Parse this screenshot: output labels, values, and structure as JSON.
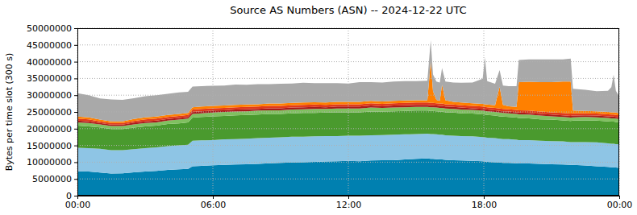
{
  "chart_data": {
    "type": "area",
    "title": "Source AS Numbers (ASN) -- 2024-12-22 UTC",
    "y_label": "Bytes per time slot (300 s)",
    "stacked": true,
    "grid": true,
    "x": [
      0,
      0.5,
      1,
      1.5,
      2,
      2.5,
      3,
      3.5,
      4,
      4.5,
      4.9,
      5.1,
      5.5,
      6,
      6.5,
      7,
      7.5,
      8,
      8.5,
      9,
      9.5,
      10,
      10.5,
      11,
      11.5,
      12,
      12.5,
      13,
      13.5,
      14,
      14.5,
      15,
      15.5,
      15.65,
      15.75,
      15.9,
      16.05,
      16.15,
      16.3,
      16.65,
      17,
      17.5,
      17.95,
      18.05,
      18.15,
      18.5,
      18.7,
      18.85,
      19.1,
      19.45,
      19.55,
      20,
      20.5,
      21,
      21.5,
      21.85,
      21.95,
      22.5,
      23,
      23.5,
      23.65,
      23.75,
      23.85,
      24
    ],
    "xlim": [
      0,
      24
    ],
    "xticks": [
      {
        "value": 0,
        "label": "00:00"
      },
      {
        "value": 6,
        "label": "06:00"
      },
      {
        "value": 12,
        "label": "12:00"
      },
      {
        "value": 18,
        "label": "18:00"
      },
      {
        "value": 24,
        "label": "00:00"
      }
    ],
    "ylim": [
      0,
      50000000
    ],
    "yticks": [
      0,
      5000000,
      10000000,
      15000000,
      20000000,
      25000000,
      30000000,
      35000000,
      40000000,
      45000000,
      50000000
    ],
    "series": [
      {
        "color": "#0080b0",
        "values": [
          7300000,
          7200000,
          6900000,
          6600000,
          6700000,
          7000000,
          7200000,
          7400000,
          7700000,
          7900000,
          8000000,
          8800000,
          8900000,
          9100000,
          9200000,
          9300000,
          9400000,
          9500000,
          9700000,
          9800000,
          9900000,
          10000000,
          10100000,
          10200000,
          10300000,
          10400000,
          10300000,
          10500000,
          10600000,
          10600000,
          10800000,
          11000000,
          11100000,
          11000000,
          11000000,
          10900000,
          10800000,
          10800000,
          10700000,
          10600000,
          10500000,
          10400000,
          10300000,
          10200000,
          10100000,
          10000000,
          9900000,
          9800000,
          9800000,
          9700000,
          9600000,
          9600000,
          9500000,
          9400000,
          9300000,
          9200000,
          9200000,
          9000000,
          8800000,
          8600000,
          8500000,
          8500000,
          8400000,
          8300000
        ]
      },
      {
        "color": "#8ec5e5",
        "values": [
          7000000,
          7000000,
          7100000,
          7000000,
          6900000,
          6900000,
          7000000,
          7000000,
          7100000,
          7100000,
          7200000,
          7600000,
          7600000,
          7500000,
          7600000,
          7600000,
          7600000,
          7700000,
          7600000,
          7600000,
          7700000,
          7600000,
          7600000,
          7600000,
          7500000,
          7500000,
          7600000,
          7500000,
          7500000,
          7600000,
          7500000,
          7400000,
          7400000,
          7400000,
          7400000,
          7400000,
          7400000,
          7400000,
          7300000,
          7300000,
          7300000,
          7300000,
          7200000,
          7200000,
          7200000,
          7200000,
          7100000,
          7100000,
          7100000,
          7000000,
          7000000,
          7000000,
          6900000,
          6900000,
          6900000,
          6800000,
          6800000,
          7000000,
          7100000,
          7000000,
          7000000,
          7000000,
          7000000,
          7000000
        ]
      },
      {
        "color": "#4a9a2e",
        "values": [
          6600000,
          6500000,
          6400000,
          6300000,
          6300000,
          6400000,
          6500000,
          6500000,
          6600000,
          6600000,
          6700000,
          6900000,
          7000000,
          7100000,
          7000000,
          7100000,
          7100000,
          7000000,
          7100000,
          7000000,
          7000000,
          7100000,
          7000000,
          7000000,
          7100000,
          7000000,
          7000000,
          7100000,
          7000000,
          7000000,
          7000000,
          7000000,
          6900000,
          6900000,
          6900000,
          6900000,
          6900000,
          6900000,
          6900000,
          6900000,
          6800000,
          6800000,
          6800000,
          6800000,
          6800000,
          6700000,
          6700000,
          6700000,
          6600000,
          6600000,
          6600000,
          6500000,
          6400000,
          6400000,
          6300000,
          6300000,
          6400000,
          6500000,
          6500000,
          6600000,
          6600000,
          6600000,
          6600000,
          6600000
        ]
      },
      {
        "color": "#80c060",
        "values": [
          1000000,
          1000000,
          900000,
          900000,
          900000,
          1000000,
          1000000,
          1000000,
          1000000,
          1100000,
          1100000,
          1100000,
          1100000,
          1100000,
          1200000,
          1100000,
          1100000,
          1200000,
          1100000,
          1100000,
          1100000,
          1100000,
          1200000,
          1100000,
          1100000,
          1100000,
          1100000,
          1200000,
          1100000,
          1100000,
          1100000,
          1100000,
          1100000,
          1100000,
          1100000,
          1100000,
          1100000,
          1100000,
          1100000,
          1100000,
          1100000,
          1100000,
          1100000,
          1100000,
          1100000,
          1100000,
          1100000,
          1100000,
          1100000,
          1100000,
          1100000,
          1100000,
          1100000,
          1000000,
          1000000,
          1000000,
          1000000,
          1000000,
          1000000,
          1000000,
          1000000,
          1000000,
          1000000,
          1000000
        ]
      },
      {
        "color": "#a81c1c",
        "values": [
          500000,
          500000,
          400000,
          400000,
          400000,
          500000,
          500000,
          500000,
          500000,
          500000,
          500000,
          600000,
          600000,
          600000,
          500000,
          600000,
          600000,
          500000,
          600000,
          600000,
          600000,
          600000,
          600000,
          500000,
          600000,
          600000,
          600000,
          600000,
          500000,
          600000,
          600000,
          600000,
          600000,
          600000,
          600000,
          600000,
          600000,
          600000,
          600000,
          600000,
          600000,
          500000,
          500000,
          500000,
          500000,
          500000,
          500000,
          500000,
          500000,
          500000,
          500000,
          500000,
          500000,
          500000,
          500000,
          500000,
          500000,
          500000,
          500000,
          500000,
          500000,
          500000,
          500000,
          500000
        ]
      },
      {
        "color": "#e03a1a",
        "values": [
          600000,
          600000,
          500000,
          500000,
          500000,
          500000,
          600000,
          600000,
          600000,
          600000,
          600000,
          700000,
          700000,
          700000,
          700000,
          700000,
          700000,
          700000,
          700000,
          700000,
          700000,
          700000,
          700000,
          700000,
          700000,
          700000,
          700000,
          700000,
          700000,
          700000,
          700000,
          700000,
          700000,
          700000,
          700000,
          700000,
          700000,
          700000,
          700000,
          700000,
          700000,
          700000,
          700000,
          700000,
          700000,
          700000,
          700000,
          700000,
          700000,
          700000,
          700000,
          700000,
          700000,
          700000,
          700000,
          700000,
          700000,
          600000,
          600000,
          600000,
          600000,
          600000,
          600000,
          600000
        ]
      },
      {
        "color": "#ff8000",
        "values": [
          600000,
          600000,
          500000,
          500000,
          500000,
          600000,
          600000,
          600000,
          600000,
          600000,
          600000,
          700000,
          700000,
          700000,
          700000,
          700000,
          700000,
          700000,
          700000,
          700000,
          700000,
          700000,
          700000,
          700000,
          700000,
          700000,
          700000,
          700000,
          700000,
          700000,
          700000,
          700000,
          700000,
          12400000,
          3500000,
          1000000,
          800000,
          5600000,
          1200000,
          800000,
          800000,
          800000,
          800000,
          800000,
          800000,
          800000,
          6500000,
          1200000,
          900000,
          900000,
          8400000,
          8600000,
          8800000,
          9000000,
          9400000,
          9600000,
          800000,
          700000,
          700000,
          700000,
          700000,
          700000,
          700000,
          600000
        ]
      },
      {
        "color": "#a9a9a9",
        "values": [
          7000000,
          6600000,
          6300000,
          6500000,
          6400000,
          6200000,
          6300000,
          6400000,
          6300000,
          6400000,
          6300000,
          6200000,
          6100000,
          6000000,
          6000000,
          6100000,
          5900000,
          6000000,
          5800000,
          5900000,
          5800000,
          5900000,
          5700000,
          5800000,
          5600000,
          5500000,
          5900000,
          5600000,
          5700000,
          5800000,
          5800000,
          5700000,
          5800000,
          6300000,
          5000000,
          5500000,
          5500000,
          5000000,
          5600000,
          5800000,
          5900000,
          6200000,
          7500000,
          14000000,
          7000000,
          6400000,
          5000000,
          5800000,
          6000000,
          6200000,
          6600000,
          6700000,
          6800000,
          6800000,
          6600000,
          6800000,
          6500000,
          6300000,
          6000000,
          6300000,
          7500000,
          11200000,
          6500000,
          5000000
        ]
      }
    ]
  }
}
